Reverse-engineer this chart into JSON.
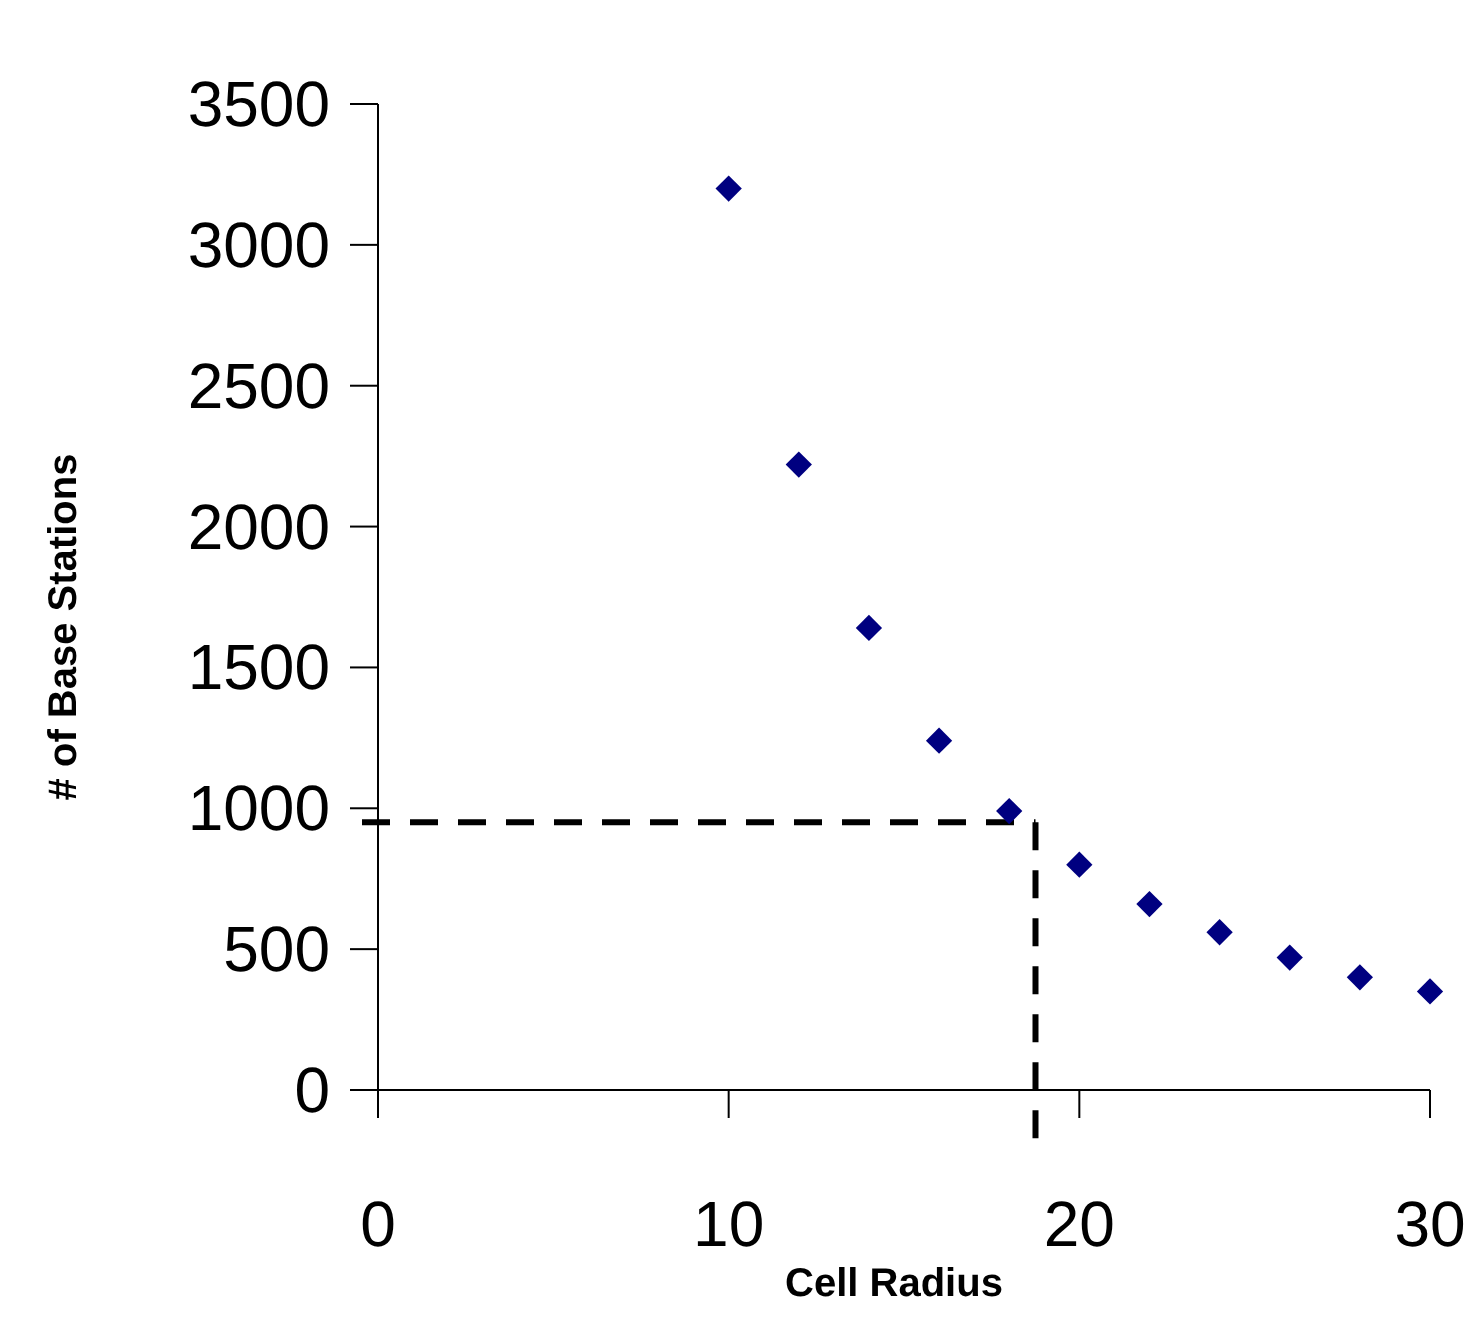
{
  "chart_data": {
    "type": "scatter",
    "xlabel": "Cell Radius",
    "ylabel": "# of Base Stations",
    "x": [
      10,
      12,
      14,
      16,
      18,
      20,
      22,
      24,
      26,
      28,
      30
    ],
    "series": [
      {
        "color": "#000080",
        "values": [
          3200,
          2220,
          1640,
          1240,
          990,
          800,
          660,
          560,
          470,
          400,
          350
        ]
      }
    ],
    "xlim": [
      0,
      30
    ],
    "ylim": [
      0,
      3500
    ],
    "xticks": [
      0,
      10,
      20,
      30
    ],
    "yticks": [
      0,
      500,
      1000,
      1500,
      2000,
      2500,
      3000,
      3500
    ],
    "marker": "diamond",
    "grid": false,
    "ref_lines": [
      {
        "axis": "y",
        "value": 950,
        "line_style": "dashed",
        "color": "#000000"
      },
      {
        "axis": "x",
        "value": 18.75,
        "line_style": "dashed",
        "color": "#000000"
      }
    ]
  }
}
